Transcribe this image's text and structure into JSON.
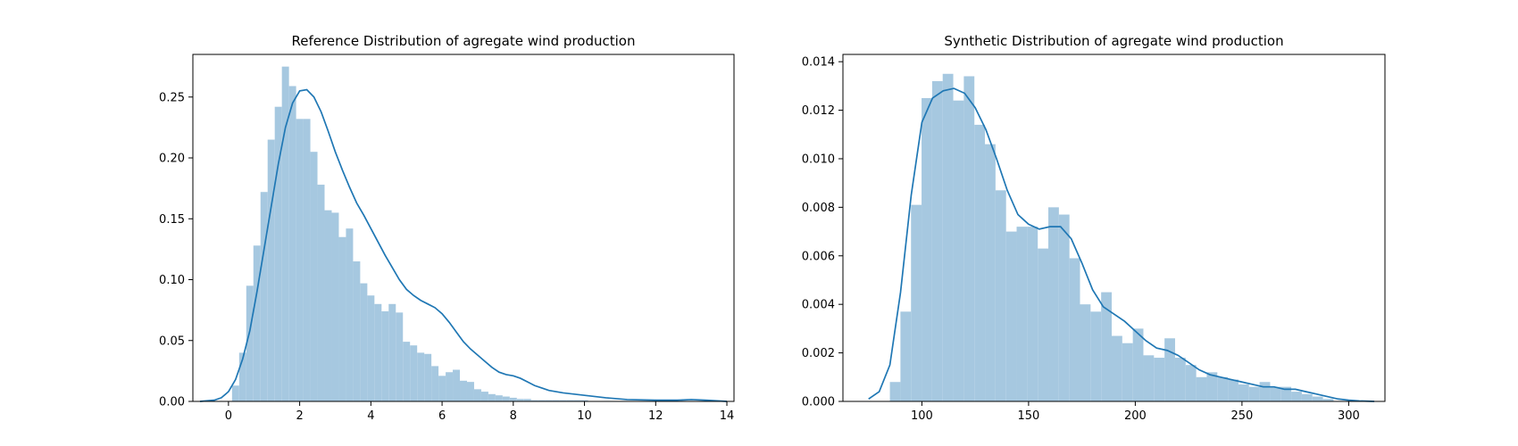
{
  "chart_data": [
    {
      "type": "bar",
      "title": "Reference Distribution of agregate wind production",
      "xlabel": "",
      "ylabel": "",
      "xlim": [
        -1,
        14.2
      ],
      "ylim": [
        0,
        0.285
      ],
      "xticks": [
        0,
        2,
        4,
        6,
        8,
        10,
        12,
        14
      ],
      "xtick_labels": [
        "0",
        "2",
        "4",
        "6",
        "8",
        "10",
        "12",
        "14"
      ],
      "yticks": [
        0,
        0.05,
        0.1,
        0.15,
        0.2,
        0.25
      ],
      "ytick_labels": [
        "0.00",
        "0.05",
        "0.10",
        "0.15",
        "0.20",
        "0.25"
      ],
      "bin_start": 0.1,
      "bin_width": 0.2,
      "histogram": [
        0.013,
        0.04,
        0.095,
        0.128,
        0.172,
        0.215,
        0.242,
        0.275,
        0.259,
        0.232,
        0.232,
        0.205,
        0.178,
        0.157,
        0.155,
        0.135,
        0.142,
        0.115,
        0.097,
        0.087,
        0.08,
        0.074,
        0.08,
        0.073,
        0.049,
        0.046,
        0.04,
        0.039,
        0.029,
        0.021,
        0.024,
        0.026,
        0.017,
        0.016,
        0.01,
        0.008,
        0.006,
        0.005,
        0.004,
        0.003,
        0.002,
        0.002,
        0.001,
        0.001,
        0.001,
        0.001,
        0.001,
        0.001,
        0.001,
        0.001
      ],
      "kde": [
        [
          -0.8,
          0.0
        ],
        [
          -0.4,
          0.001
        ],
        [
          -0.2,
          0.003
        ],
        [
          0,
          0.008
        ],
        [
          0.2,
          0.018
        ],
        [
          0.4,
          0.035
        ],
        [
          0.6,
          0.058
        ],
        [
          0.8,
          0.09
        ],
        [
          1.0,
          0.125
        ],
        [
          1.2,
          0.16
        ],
        [
          1.4,
          0.195
        ],
        [
          1.6,
          0.225
        ],
        [
          1.8,
          0.245
        ],
        [
          2.0,
          0.255
        ],
        [
          2.2,
          0.256
        ],
        [
          2.4,
          0.25
        ],
        [
          2.6,
          0.238
        ],
        [
          2.8,
          0.222
        ],
        [
          3.0,
          0.205
        ],
        [
          3.2,
          0.19
        ],
        [
          3.4,
          0.176
        ],
        [
          3.6,
          0.163
        ],
        [
          3.8,
          0.153
        ],
        [
          4.0,
          0.142
        ],
        [
          4.2,
          0.131
        ],
        [
          4.4,
          0.12
        ],
        [
          4.6,
          0.11
        ],
        [
          4.8,
          0.1
        ],
        [
          5.0,
          0.092
        ],
        [
          5.2,
          0.087
        ],
        [
          5.4,
          0.083
        ],
        [
          5.6,
          0.08
        ],
        [
          5.8,
          0.077
        ],
        [
          6.0,
          0.072
        ],
        [
          6.2,
          0.065
        ],
        [
          6.4,
          0.057
        ],
        [
          6.6,
          0.049
        ],
        [
          6.8,
          0.043
        ],
        [
          7.0,
          0.038
        ],
        [
          7.2,
          0.033
        ],
        [
          7.4,
          0.028
        ],
        [
          7.6,
          0.024
        ],
        [
          7.8,
          0.022
        ],
        [
          8.0,
          0.021
        ],
        [
          8.2,
          0.019
        ],
        [
          8.4,
          0.016
        ],
        [
          8.6,
          0.013
        ],
        [
          8.8,
          0.011
        ],
        [
          9.0,
          0.009
        ],
        [
          9.4,
          0.007
        ],
        [
          10.0,
          0.005
        ],
        [
          10.6,
          0.003
        ],
        [
          11.2,
          0.0015
        ],
        [
          12.0,
          0.001
        ],
        [
          12.6,
          0.001
        ],
        [
          13.0,
          0.0015
        ],
        [
          13.4,
          0.001
        ],
        [
          14.0,
          0.0
        ]
      ],
      "colors": {
        "bars": "#a6c8e0",
        "kde": "#1f77b4"
      }
    },
    {
      "type": "bar",
      "title": "Synthetic Distribution of agregate wind production",
      "xlabel": "",
      "ylabel": "",
      "xlim": [
        63,
        317
      ],
      "ylim": [
        0,
        0.0143
      ],
      "xticks": [
        100,
        150,
        200,
        250,
        300
      ],
      "xtick_labels": [
        "100",
        "150",
        "200",
        "250",
        "300"
      ],
      "yticks": [
        0,
        0.002,
        0.004,
        0.006,
        0.008,
        0.01,
        0.012,
        0.014
      ],
      "ytick_labels": [
        "0.000",
        "0.002",
        "0.004",
        "0.006",
        "0.008",
        "0.010",
        "0.012",
        "0.014"
      ],
      "bin_start": 85,
      "bin_width": 4.95,
      "histogram": [
        0.0008,
        0.0037,
        0.0081,
        0.0125,
        0.0132,
        0.0135,
        0.0124,
        0.0134,
        0.0114,
        0.0106,
        0.0087,
        0.007,
        0.0072,
        0.0072,
        0.0063,
        0.008,
        0.0077,
        0.0059,
        0.004,
        0.0037,
        0.0045,
        0.0027,
        0.0024,
        0.003,
        0.0019,
        0.0018,
        0.0026,
        0.0018,
        0.0015,
        0.001,
        0.0012,
        0.001,
        0.0009,
        0.0007,
        0.0006,
        0.0008,
        0.0006,
        0.0006,
        0.0004,
        0.0003,
        0.0002,
        0.0001
      ],
      "kde": [
        [
          75,
          0.0001
        ],
        [
          80,
          0.0004
        ],
        [
          85,
          0.0015
        ],
        [
          90,
          0.0045
        ],
        [
          95,
          0.0085
        ],
        [
          100,
          0.0115
        ],
        [
          105,
          0.0125
        ],
        [
          110,
          0.0128
        ],
        [
          115,
          0.0129
        ],
        [
          120,
          0.0127
        ],
        [
          125,
          0.0121
        ],
        [
          130,
          0.0112
        ],
        [
          135,
          0.01
        ],
        [
          140,
          0.0087
        ],
        [
          145,
          0.0077
        ],
        [
          150,
          0.0073
        ],
        [
          155,
          0.0071
        ],
        [
          160,
          0.0072
        ],
        [
          165,
          0.0072
        ],
        [
          170,
          0.0067
        ],
        [
          175,
          0.0057
        ],
        [
          180,
          0.0046
        ],
        [
          185,
          0.0039
        ],
        [
          190,
          0.0036
        ],
        [
          195,
          0.0033
        ],
        [
          200,
          0.0029
        ],
        [
          205,
          0.0025
        ],
        [
          210,
          0.0022
        ],
        [
          215,
          0.0021
        ],
        [
          220,
          0.0019
        ],
        [
          225,
          0.0016
        ],
        [
          230,
          0.0013
        ],
        [
          235,
          0.0011
        ],
        [
          240,
          0.001
        ],
        [
          245,
          0.0009
        ],
        [
          250,
          0.0008
        ],
        [
          255,
          0.0007
        ],
        [
          260,
          0.0006
        ],
        [
          265,
          0.0006
        ],
        [
          270,
          0.0005
        ],
        [
          275,
          0.0005
        ],
        [
          280,
          0.0004
        ],
        [
          285,
          0.0003
        ],
        [
          290,
          0.0002
        ],
        [
          295,
          0.0001
        ],
        [
          300,
          5e-05
        ],
        [
          305,
          2e-05
        ],
        [
          312,
          0.0
        ]
      ],
      "colors": {
        "bars": "#a6c8e0",
        "kde": "#1f77b4"
      }
    }
  ]
}
